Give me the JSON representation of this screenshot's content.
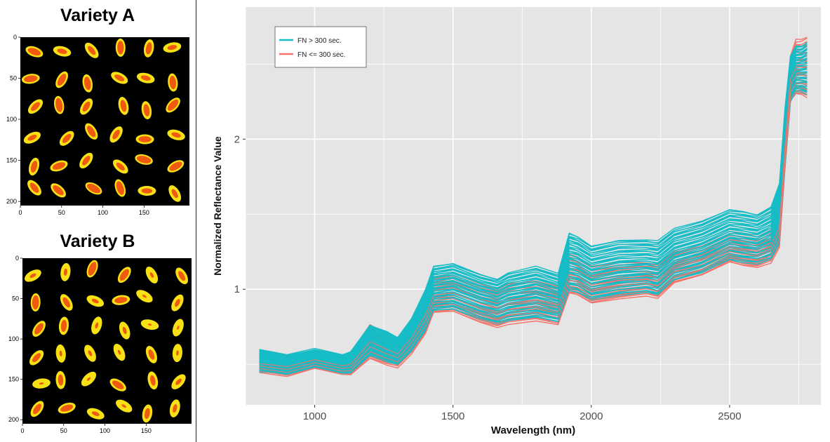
{
  "panels": {
    "variety_a": {
      "title": "Variety A",
      "x_ticks": [
        "0",
        "50",
        "100",
        "150"
      ],
      "y_ticks": [
        "0",
        "50",
        "100",
        "150",
        "200"
      ]
    },
    "variety_b": {
      "title": "Variety B",
      "x_ticks": [
        "0",
        "50",
        "100",
        "150"
      ],
      "y_ticks": [
        "0",
        "50",
        "100",
        "150",
        "200"
      ]
    }
  },
  "colors": {
    "fn_high": "#16bcc6",
    "fn_low": "#f4736a",
    "panel_bg": "#e5e5e5",
    "grain_orange": "#f05a10",
    "grain_yellow": "#f7e014",
    "image_bg": "#000000"
  },
  "chart_data": {
    "type": "line",
    "title": "",
    "xlabel": "Wavelength (nm)",
    "ylabel": "Normalized Reflectance Value",
    "xlim": [
      750,
      2830
    ],
    "ylim": [
      0.23,
      2.88
    ],
    "x_ticks": [
      1000,
      1500,
      2000,
      2500
    ],
    "y_ticks": [
      1,
      2
    ],
    "grid": true,
    "legend_position": "top-left",
    "series": [
      {
        "name": "FN > 300 sec.",
        "color": "#16bcc6",
        "x": [
          800,
          900,
          1000,
          1100,
          1130,
          1200,
          1260,
          1300,
          1350,
          1400,
          1430,
          1500,
          1600,
          1660,
          1700,
          1800,
          1880,
          1920,
          1950,
          2000,
          2100,
          2200,
          2240,
          2300,
          2400,
          2500,
          2550,
          2600,
          2650,
          2680,
          2700,
          2720,
          2740,
          2760,
          2780
        ],
        "upper": [
          0.6,
          0.56,
          0.6,
          0.56,
          0.58,
          0.76,
          0.72,
          0.68,
          0.8,
          0.99,
          1.15,
          1.17,
          1.1,
          1.07,
          1.11,
          1.15,
          1.1,
          1.37,
          1.35,
          1.29,
          1.33,
          1.33,
          1.32,
          1.4,
          1.45,
          1.53,
          1.52,
          1.5,
          1.55,
          1.7,
          2.2,
          2.55,
          2.62,
          2.62,
          2.65
        ],
        "lower": [
          0.45,
          0.43,
          0.48,
          0.44,
          0.44,
          0.56,
          0.52,
          0.5,
          0.58,
          0.72,
          0.86,
          0.87,
          0.8,
          0.77,
          0.79,
          0.81,
          0.78,
          0.99,
          0.98,
          0.93,
          0.96,
          0.98,
          0.96,
          1.06,
          1.11,
          1.2,
          1.18,
          1.17,
          1.2,
          1.3,
          1.8,
          2.25,
          2.32,
          2.32,
          2.3
        ],
        "count": 60
      },
      {
        "name": "FN <= 300 sec.",
        "color": "#f4736a",
        "x": [
          800,
          900,
          1000,
          1100,
          1130,
          1200,
          1260,
          1300,
          1350,
          1400,
          1430,
          1500,
          1600,
          1660,
          1700,
          1800,
          1880,
          1920,
          1950,
          2000,
          2100,
          2200,
          2240,
          2300,
          2400,
          2500,
          2550,
          2600,
          2650,
          2680,
          2700,
          2720,
          2740,
          2760,
          2780
        ],
        "upper": [
          0.56,
          0.55,
          0.59,
          0.55,
          0.57,
          0.76,
          0.7,
          0.66,
          0.78,
          0.96,
          1.08,
          1.1,
          1.03,
          1.0,
          1.04,
          1.06,
          1.02,
          1.23,
          1.21,
          1.15,
          1.18,
          1.18,
          1.17,
          1.26,
          1.3,
          1.38,
          1.37,
          1.35,
          1.4,
          1.55,
          2.1,
          2.55,
          2.66,
          2.66,
          2.68
        ],
        "lower": [
          0.45,
          0.42,
          0.47,
          0.43,
          0.43,
          0.54,
          0.5,
          0.48,
          0.57,
          0.7,
          0.84,
          0.85,
          0.78,
          0.75,
          0.77,
          0.79,
          0.76,
          0.97,
          0.96,
          0.91,
          0.94,
          0.96,
          0.94,
          1.04,
          1.09,
          1.18,
          1.16,
          1.15,
          1.18,
          1.28,
          1.8,
          2.25,
          2.3,
          2.3,
          2.28
        ],
        "count": 30
      }
    ]
  }
}
